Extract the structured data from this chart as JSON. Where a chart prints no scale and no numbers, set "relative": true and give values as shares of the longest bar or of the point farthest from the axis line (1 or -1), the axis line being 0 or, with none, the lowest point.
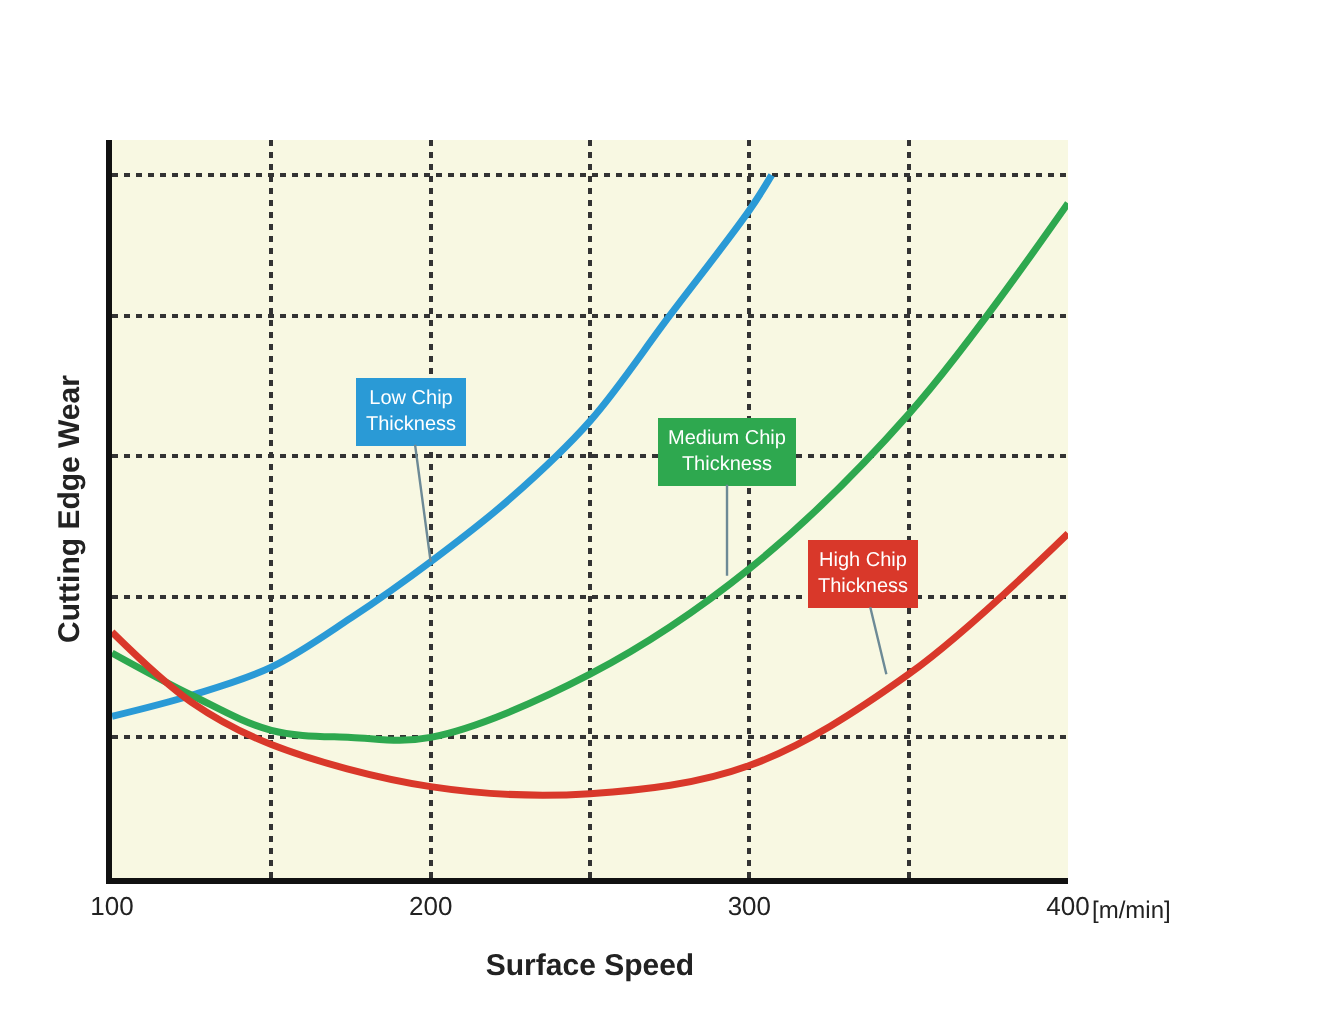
{
  "chart_data": {
    "type": "line",
    "relative": true,
    "xlabel": "Surface Speed",
    "ylabel": "Cutting Edge Wear",
    "x": [
      100,
      125,
      150,
      175,
      200,
      225,
      250,
      275,
      300,
      307
    ],
    "xlim": [
      100,
      400
    ],
    "xticks": [
      100,
      {
        "value": 150,
        "label": null
      },
      200,
      {
        "value": 250,
        "label": null
      },
      300,
      {
        "value": 350,
        "label": null
      },
      400
    ],
    "grid": true,
    "marker": "none",
    "line_style": "solid",
    "series": [
      {
        "color": "#2a9ad6",
        "values": [
          0.23,
          0.26,
          0.3,
          0.37,
          0.45,
          0.54,
          0.65,
          0.8,
          0.95,
          1.0
        ]
      },
      {
        "color": "#2ea84f",
        "x": [
          100,
          125,
          150,
          175,
          200,
          250,
          300,
          350,
          400
        ],
        "values": [
          0.32,
          0.26,
          0.21,
          0.2,
          0.2,
          0.29,
          0.44,
          0.66,
          0.96
        ]
      },
      {
        "color": "#d9382a",
        "x": [
          100,
          125,
          150,
          200,
          250,
          300,
          350,
          400
        ],
        "values": [
          0.35,
          0.25,
          0.19,
          0.13,
          0.12,
          0.16,
          0.29,
          0.49
        ]
      }
    ],
    "annotations": [
      {
        "text": "Low Chip\nThickness",
        "x": 200,
        "y": 0.45
      },
      {
        "text": "Medium Chip\nThickness",
        "x": 293,
        "y": 0.43
      },
      {
        "text": "High Chip\nThickness",
        "x": 343,
        "y": 0.29
      },
      "[m/min]"
    ]
  }
}
